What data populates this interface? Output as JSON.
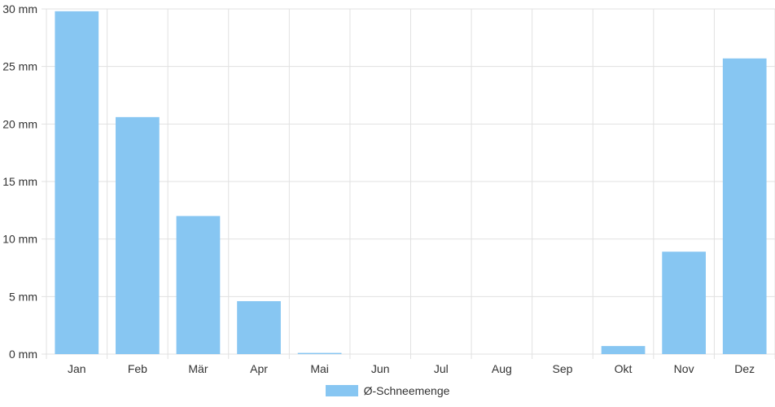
{
  "chart_data": {
    "type": "bar",
    "categories": [
      "Jan",
      "Feb",
      "Mär",
      "Apr",
      "Mai",
      "Jun",
      "Jul",
      "Aug",
      "Sep",
      "Okt",
      "Nov",
      "Dez"
    ],
    "series": [
      {
        "name": "Ø-Schneemenge",
        "values": [
          29.8,
          20.6,
          12.0,
          4.6,
          0.1,
          0,
          0,
          0,
          0,
          0.7,
          8.9,
          25.7
        ]
      }
    ],
    "y_ticks": [
      "0 mm",
      "5 mm",
      "10 mm",
      "15 mm",
      "20 mm",
      "25 mm",
      "30 mm"
    ],
    "ylim": [
      0,
      30
    ],
    "grid": true,
    "legend_position": "bottom",
    "colors": {
      "bar": "#87c6f2",
      "grid": "#e1e1e1",
      "text": "#333333"
    }
  }
}
